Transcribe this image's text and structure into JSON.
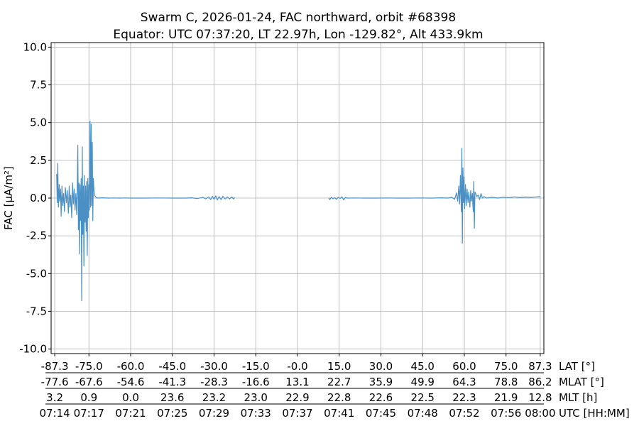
{
  "chart_data": {
    "type": "line",
    "title_line1": "Swarm C, 2026-01-24, FAC northward, orbit #68398",
    "title_line2": "Equator: UTC 07:37:20, LT 22.97h, Lon -129.82°, Alt 433.9km",
    "ylabel": "FAC [µA/m²]",
    "ylim": [
      -10.3,
      10.3
    ],
    "y_ticks": [
      {
        "value": 10,
        "label": "10.0"
      },
      {
        "value": 7.5,
        "label": "7.5"
      },
      {
        "value": 5,
        "label": "5.0"
      },
      {
        "value": 2.5,
        "label": "2.5"
      },
      {
        "value": 0,
        "label": "0.0"
      },
      {
        "value": -2.5,
        "label": "-2.5"
      },
      {
        "value": -5,
        "label": "-5.0"
      },
      {
        "value": -7.5,
        "label": "-7.5"
      },
      {
        "value": -10,
        "label": "-10.0"
      }
    ],
    "grid": true,
    "x_rows": [
      {
        "label": "LAT [°]",
        "ticks": [
          "-87.3",
          "-75.0",
          "-60.0",
          "-45.0",
          "-30.0",
          "-15.0",
          "-0.0",
          "15.0",
          "30.0",
          "45.0",
          "60.0",
          "75.0",
          "87.3"
        ]
      },
      {
        "label": "MLAT [°]",
        "ticks": [
          "-77.6",
          "-67.6",
          "-54.6",
          "-41.3",
          "-28.3",
          "-16.6",
          "13.1",
          "22.7",
          "35.9",
          "49.9",
          "64.3",
          "78.8",
          "86.2"
        ]
      },
      {
        "label": "MLT [h]",
        "ticks": [
          "3.2",
          "0.9",
          "0.0",
          "23.6",
          "23.2",
          "23.0",
          "22.9",
          "22.8",
          "22.6",
          "22.5",
          "22.3",
          "21.9",
          "12.8"
        ]
      },
      {
        "label": "UTC [HH:MM]",
        "ticks": [
          "07:14",
          "07:17",
          "07:21",
          "07:25",
          "07:29",
          "07:33",
          "07:37",
          "07:41",
          "07:45",
          "07:48",
          "07:52",
          "07:56",
          "08:00"
        ]
      }
    ],
    "x_positions_lat": [
      -87.3,
      -75.0,
      -60.0,
      -45.0,
      -30.0,
      -15.0,
      0.0,
      15.0,
      30.0,
      45.0,
      60.0,
      75.0,
      87.3
    ],
    "xlim_lat": [
      -88.6,
      88.6
    ],
    "series": [
      {
        "color": "#4a90c4",
        "segments": [
          [
            [
              -86.6,
              1.6
            ],
            [
              -86.4,
              -0.3
            ],
            [
              -86.2,
              2.3
            ],
            [
              -86.0,
              -0.6
            ],
            [
              -85.7,
              0.9
            ],
            [
              -85.5,
              -0.2
            ],
            [
              -85.2,
              0.6
            ],
            [
              -85.0,
              -1.2
            ],
            [
              -84.7,
              0.8
            ],
            [
              -84.4,
              -0.5
            ],
            [
              -84.1,
              0.3
            ],
            [
              -83.8,
              -0.9
            ],
            [
              -83.5,
              0.7
            ],
            [
              -83.1,
              -0.3
            ],
            [
              -82.8,
              0.5
            ],
            [
              -82.4,
              -1.0
            ],
            [
              -82.1,
              0.8
            ],
            [
              -81.8,
              -0.6
            ],
            [
              -81.5,
              0.2
            ],
            [
              -81.2,
              -1.3
            ],
            [
              -80.9,
              1.0
            ],
            [
              -80.6,
              -0.4
            ],
            [
              -80.3,
              0.6
            ],
            [
              -80.0,
              -0.8
            ],
            [
              -79.7,
              0.3
            ],
            [
              -79.4,
              -1.1
            ],
            [
              -79.2,
              0.7
            ],
            [
              -79.0,
              3.5
            ],
            [
              -78.8,
              -2.1
            ],
            [
              -78.6,
              1.0
            ],
            [
              -78.4,
              -3.7
            ],
            [
              -78.2,
              0.9
            ],
            [
              -78.0,
              -1.5
            ],
            [
              -77.8,
              1.3
            ],
            [
              -77.6,
              -6.8
            ],
            [
              -77.4,
              3.4
            ],
            [
              -77.2,
              -2.4
            ],
            [
              -77.0,
              0.8
            ],
            [
              -76.8,
              -4.5
            ],
            [
              -76.6,
              1.5
            ],
            [
              -76.4,
              -1.6
            ],
            [
              -76.2,
              0.8
            ],
            [
              -76.0,
              -2.2
            ],
            [
              -75.8,
              1.1
            ],
            [
              -75.6,
              -3.8
            ],
            [
              -75.4,
              1.3
            ],
            [
              -75.2,
              -1.3
            ],
            [
              -75.0,
              0.9
            ],
            [
              -74.8,
              -0.8
            ],
            [
              -74.6,
              5.1
            ],
            [
              -74.4,
              -0.6
            ],
            [
              -74.2,
              4.9
            ],
            [
              -74.0,
              -0.5
            ],
            [
              -73.8,
              3.7
            ],
            [
              -73.6,
              -1.5
            ],
            [
              -73.4,
              1.3
            ],
            [
              -73.2,
              0.6
            ],
            [
              -73.0,
              0.2
            ],
            [
              -72.7,
              0.1
            ],
            [
              -72.4,
              0.05
            ],
            [
              -72.0,
              0.0
            ],
            [
              -70.0,
              0.02
            ],
            [
              -68.0,
              0.0
            ],
            [
              -66.0,
              0.01
            ],
            [
              -64.0,
              0.0
            ],
            [
              -62.0,
              0.01
            ],
            [
              -60.0,
              0.0
            ],
            [
              -55.0,
              0.0
            ],
            [
              -50.0,
              0.01
            ],
            [
              -45.0,
              0.0
            ],
            [
              -40.0,
              0.0
            ],
            [
              -38.0,
              0.02
            ],
            [
              -36.0,
              -0.03
            ],
            [
              -34.0,
              0.05
            ],
            [
              -33.0,
              -0.05
            ],
            [
              -32.0,
              0.08
            ],
            [
              -31.2,
              -0.1
            ],
            [
              -30.6,
              0.12
            ],
            [
              -30.0,
              -0.08
            ],
            [
              -29.4,
              0.15
            ],
            [
              -28.8,
              -0.12
            ],
            [
              -28.2,
              0.1
            ],
            [
              -27.5,
              -0.1
            ],
            [
              -26.8,
              0.12
            ],
            [
              -26.0,
              -0.06
            ],
            [
              -25.2,
              0.08
            ],
            [
              -24.4,
              -0.05
            ],
            [
              -23.6,
              0.07
            ],
            [
              -23.0,
              -0.06
            ],
            [
              -22.6,
              0.05
            ]
          ],
          [
            [
              11.2,
              0.03
            ],
            [
              11.6,
              -0.1
            ],
            [
              12.2,
              0.06
            ],
            [
              12.8,
              -0.05
            ],
            [
              13.4,
              0.03
            ],
            [
              14.0,
              -0.08
            ],
            [
              14.6,
              0.05
            ],
            [
              15.4,
              -0.02
            ],
            [
              16.0,
              0.08
            ],
            [
              16.6,
              -0.12
            ],
            [
              17.2,
              0.04
            ],
            [
              18.0,
              0.0
            ],
            [
              20.0,
              0.01
            ],
            [
              24.0,
              0.0
            ],
            [
              28.0,
              0.0
            ],
            [
              32.0,
              0.01
            ],
            [
              36.0,
              0.0
            ],
            [
              40.0,
              0.0
            ],
            [
              44.0,
              0.01
            ],
            [
              48.0,
              0.0
            ],
            [
              52.0,
              0.02
            ],
            [
              54.0,
              0.0
            ],
            [
              55.5,
              0.05
            ],
            [
              56.5,
              -0.08
            ],
            [
              57.2,
              0.35
            ],
            [
              57.6,
              -0.2
            ],
            [
              58.0,
              0.8
            ],
            [
              58.3,
              -0.4
            ],
            [
              58.6,
              1.5
            ],
            [
              58.9,
              -0.9
            ],
            [
              59.1,
              3.3
            ],
            [
              59.3,
              -3.0
            ],
            [
              59.5,
              2.0
            ],
            [
              59.7,
              -0.3
            ],
            [
              59.9,
              1.4
            ],
            [
              60.1,
              -0.7
            ],
            [
              60.4,
              0.9
            ],
            [
              60.7,
              -0.5
            ],
            [
              61.0,
              0.6
            ],
            [
              61.3,
              -0.3
            ],
            [
              61.6,
              0.4
            ],
            [
              62.0,
              -0.6
            ],
            [
              62.3,
              0.5
            ],
            [
              62.6,
              -0.2
            ],
            [
              62.9,
              0.3
            ],
            [
              63.2,
              -0.9
            ],
            [
              63.4,
              1.1
            ],
            [
              63.6,
              -2.0
            ],
            [
              63.8,
              0.4
            ],
            [
              64.1,
              0.3
            ],
            [
              64.5,
              0.1
            ],
            [
              65.0,
              0.2
            ],
            [
              65.5,
              -0.1
            ],
            [
              66.0,
              0.3
            ],
            [
              66.5,
              0.0
            ],
            [
              67.0,
              0.1
            ],
            [
              68.0,
              0.0
            ],
            [
              70.0,
              0.05
            ],
            [
              72.0,
              0.0
            ],
            [
              74.0,
              0.06
            ],
            [
              76.0,
              0.03
            ],
            [
              78.0,
              0.08
            ],
            [
              80.0,
              0.04
            ],
            [
              82.0,
              0.07
            ],
            [
              84.0,
              0.05
            ],
            [
              86.0,
              0.08
            ],
            [
              87.3,
              0.1
            ]
          ]
        ]
      }
    ]
  }
}
